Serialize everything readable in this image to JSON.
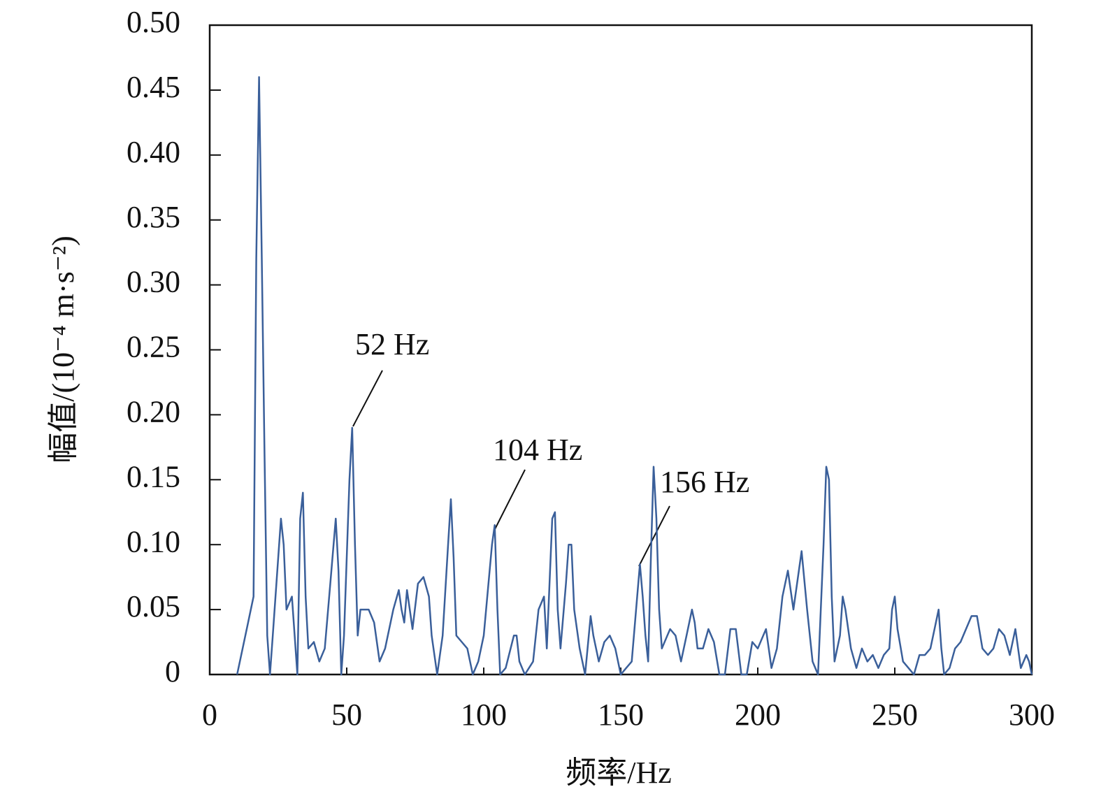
{
  "chart_data": {
    "type": "line",
    "x_label": "频率/Hz",
    "y_label": "幅值/(10⁻⁴ m·s⁻²)",
    "color": "#3a5f9a",
    "annotations": [
      "52 Hz",
      "104 Hz",
      "156 Hz"
    ],
    "xlim": [
      0,
      300
    ],
    "xticks": [
      0,
      50,
      100,
      150,
      200,
      250,
      300
    ],
    "ylim": [
      0,
      0.5
    ],
    "yticks": [
      0,
      0.05,
      {
        "value": 0.1,
        "label": "0.10"
      },
      0.15,
      {
        "value": 0.2,
        "label": "0.20"
      },
      0.25,
      {
        "value": 0.3,
        "label": "0.30"
      },
      0.35,
      {
        "value": 0.4,
        "label": "0.40"
      },
      0.45,
      {
        "value": 0.5,
        "label": "0.50"
      }
    ],
    "x": [
      10,
      14,
      16,
      17,
      18,
      19,
      20,
      21,
      22,
      23,
      25,
      26,
      27,
      28,
      29,
      30,
      31,
      32,
      33,
      34,
      35,
      36,
      38,
      40,
      42,
      44,
      46,
      47,
      48,
      49,
      51,
      52,
      53,
      54,
      55,
      58,
      60,
      62,
      64,
      67,
      69,
      70,
      71,
      72,
      73,
      74,
      76,
      78,
      80,
      81,
      83,
      85,
      87,
      88,
      89,
      90,
      92,
      94,
      96,
      98,
      100,
      103,
      104,
      105,
      106,
      108,
      111,
      112,
      113,
      115,
      118,
      120,
      122,
      123,
      125,
      126,
      127,
      128,
      130,
      131,
      132,
      133,
      135,
      137,
      139,
      140,
      142,
      144,
      146,
      148,
      150,
      152,
      154,
      156,
      157,
      158,
      159,
      160,
      161,
      162,
      163,
      164,
      165,
      167,
      168,
      170,
      172,
      174,
      176,
      177,
      178,
      180,
      182,
      184,
      186,
      188,
      190,
      192,
      194,
      196,
      198,
      200,
      202,
      203,
      205,
      207,
      209,
      211,
      213,
      215,
      216,
      218,
      220,
      222,
      224,
      225,
      226,
      227,
      228,
      230,
      231,
      232,
      234,
      236,
      238,
      240,
      242,
      244,
      246,
      248,
      249,
      250,
      251,
      253,
      255,
      257,
      259,
      261,
      263,
      265,
      266,
      267,
      268,
      270,
      272,
      274,
      276,
      278,
      280,
      282,
      284,
      286,
      288,
      290,
      292,
      294,
      296,
      298,
      299,
      300
    ],
    "values": [
      0,
      0.04,
      0.06,
      0.32,
      0.46,
      0.32,
      0.17,
      0.03,
      0,
      0.03,
      0.09,
      0.12,
      0.1,
      0.05,
      0.055,
      0.06,
      0.03,
      0,
      0.12,
      0.14,
      0.06,
      0.02,
      0.025,
      0.01,
      0.02,
      0.07,
      0.12,
      0.08,
      0,
      0.03,
      0.15,
      0.19,
      0.1,
      0.03,
      0.05,
      0.05,
      0.04,
      0.01,
      0.02,
      0.05,
      0.065,
      0.05,
      0.04,
      0.065,
      0.05,
      0.035,
      0.07,
      0.075,
      0.06,
      0.03,
      0,
      0.03,
      0.1,
      0.135,
      0.09,
      0.03,
      0.025,
      0.02,
      0,
      0.01,
      0.03,
      0.1,
      0.115,
      0.05,
      0,
      0.005,
      0.03,
      0.03,
      0.01,
      0,
      0.01,
      0.05,
      0.06,
      0.02,
      0.12,
      0.125,
      0.05,
      0.02,
      0.07,
      0.1,
      0.1,
      0.05,
      0.02,
      0,
      0.045,
      0.03,
      0.01,
      0.025,
      0.03,
      0.02,
      0,
      0.005,
      0.01,
      0.06,
      0.085,
      0.06,
      0.03,
      0.01,
      0.09,
      0.16,
      0.12,
      0.05,
      0.02,
      0.03,
      0.035,
      0.03,
      0.01,
      0.03,
      0.05,
      0.04,
      0.02,
      0.02,
      0.035,
      0.025,
      0,
      0,
      0.035,
      0.035,
      0,
      0,
      0.025,
      0.02,
      0.03,
      0.035,
      0.005,
      0.02,
      0.06,
      0.08,
      0.05,
      0.08,
      0.095,
      0.05,
      0.01,
      0,
      0.1,
      0.16,
      0.15,
      0.06,
      0.01,
      0.03,
      0.06,
      0.05,
      0.02,
      0.005,
      0.02,
      0.01,
      0.015,
      0.005,
      0.015,
      0.02,
      0.05,
      0.06,
      0.035,
      0.01,
      0.005,
      0,
      0.015,
      0.015,
      0.02,
      0.04,
      0.05,
      0.02,
      0,
      0.005,
      0.02,
      0.025,
      0.035,
      0.045,
      0.045,
      0.02,
      0.015,
      0.02,
      0.035,
      0.03,
      0.015,
      0.035,
      0.005,
      0.015,
      0.01,
      0
    ]
  }
}
